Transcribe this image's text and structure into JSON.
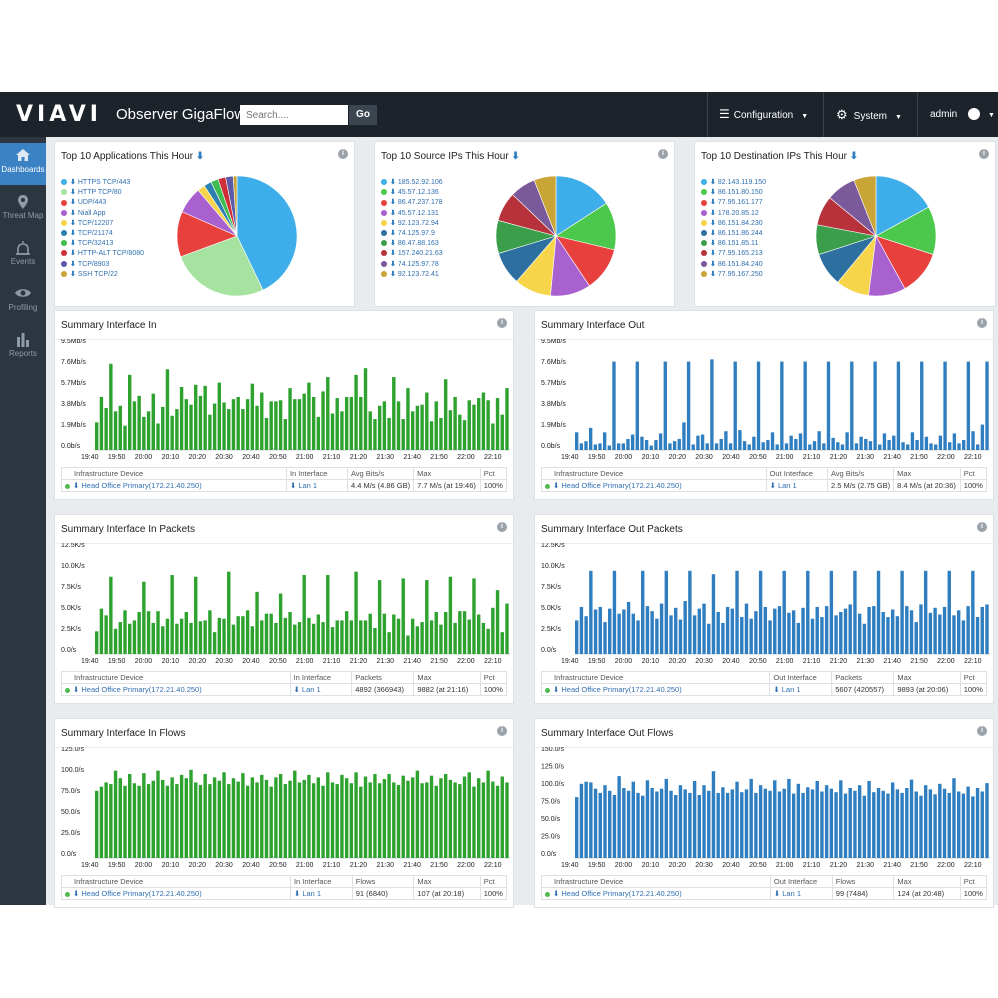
{
  "topbar": {
    "logo": "VIAVI",
    "app_name": "Observer GigaFlow",
    "search_placeholder": "Search....",
    "go_label": "Go",
    "nav": {
      "configuration": "Configuration",
      "system": "System",
      "user": "admin"
    }
  },
  "sidebar": {
    "items": [
      {
        "label": "Dashboards",
        "icon": "home-icon"
      },
      {
        "label": "Threat Map",
        "icon": "map-pin-icon"
      },
      {
        "label": "Events",
        "icon": "alarm-icon"
      },
      {
        "label": "Profiling",
        "icon": "eye-icon"
      },
      {
        "label": "Reports",
        "icon": "bar-chart-icon"
      }
    ]
  },
  "top_panels": [
    {
      "title": "Top 10 Applications This Hour",
      "legend": [
        "HTTPS TCP/443",
        "HTTP TCP/80",
        "UDP/443",
        "Niall App",
        "TCP/12207",
        "TCP/21174",
        "TCP/32413",
        "HTTP-ALT TCP/8080",
        "TCP/8903",
        "SSH TCP/22"
      ],
      "colors": [
        "#3daee9",
        "#a6e3a1",
        "#e8403c",
        "#a961cf",
        "#f7d54a",
        "#2d7fb0",
        "#3fbc4f",
        "#ce2e35",
        "#5a5aa8",
        "#c9a437"
      ],
      "values": [
        42,
        26,
        12,
        7,
        2,
        2,
        2,
        2,
        2,
        1
      ]
    },
    {
      "title": "Top 10 Source IPs This Hour",
      "legend": [
        "185.52.92.106",
        "45.57.12.136",
        "86.47.237.178",
        "45.57.12.131",
        "92.123.72.94",
        "74.125.97.9",
        "86.47.88.163",
        "157.240.21.63",
        "74.125.97.78",
        "92.123.72.41"
      ],
      "colors": [
        "#3daee9",
        "#4cc94c",
        "#e8403c",
        "#a961cf",
        "#f7d54a",
        "#2d6f9e",
        "#3a9e4a",
        "#b8323c",
        "#7a5a9a",
        "#c9a437"
      ],
      "values": [
        16,
        13,
        12,
        11,
        10,
        9,
        9,
        8,
        7,
        6
      ]
    },
    {
      "title": "Top 10 Destination IPs This Hour",
      "legend": [
        "82.143.119.150",
        "86.151.80.150",
        "77.95.161.177",
        "178.20.85.12",
        "86.151.84.230",
        "86.151.86.244",
        "86.151.85.11",
        "77.95.165.213",
        "86.151.84.240",
        "77.95.167.250"
      ],
      "colors": [
        "#3daee9",
        "#4cc94c",
        "#e8403c",
        "#a961cf",
        "#f7d54a",
        "#2d6f9e",
        "#3a9e4a",
        "#b8323c",
        "#7a5a9a",
        "#c9a437"
      ],
      "values": [
        17,
        13,
        12,
        10,
        9,
        9,
        8,
        8,
        8,
        6
      ]
    }
  ],
  "charts": [
    {
      "title": "Summary Interface In",
      "color": "#2ea22e",
      "cols": [
        "Infrastructure Device",
        "In Interface",
        "Avg Bits/s",
        "Max",
        "Pct"
      ],
      "row": [
        "Head Office Primary(172.21.40.250)",
        "Lan 1",
        "4.4 M/s (4.86 GB)",
        "7.7 M/s (at 19:46)",
        "100%"
      ],
      "chart_data": {
        "type": "bar",
        "ylabel": "",
        "y_ticks": [
          "0.0b/s",
          "1.9Mb/s",
          "3.8Mb/s",
          "5.7Mb/s",
          "7.6Mb/s",
          "9.5Mb/s"
        ],
        "ylim": [
          0,
          9.5
        ],
        "x_ticks": [
          "19:40",
          "19:50",
          "20:00",
          "20:10",
          "20:20",
          "20:30",
          "20:40",
          "20:50",
          "21:00",
          "21:10",
          "21:20",
          "21:30",
          "21:40",
          "21:50",
          "22:00",
          "22:10"
        ],
        "values": [
          2.5,
          4.8,
          3.8,
          7.8,
          3.5,
          4.0,
          2.2,
          6.8,
          4.4,
          4.9,
          3.0,
          3.5,
          5.1,
          2.4,
          3.9,
          7.3,
          3.1,
          3.7,
          5.7,
          4.6,
          4.1,
          5.9,
          4.9,
          5.8,
          3.2,
          4.2,
          6.1,
          4.3,
          3.7,
          4.6,
          4.8,
          3.7,
          4.6,
          6.0,
          4.0,
          5.2,
          2.9,
          4.4,
          4.4,
          4.5,
          2.8,
          5.6,
          4.6,
          4.6,
          5.1,
          6.1,
          4.8,
          3.0,
          5.3,
          6.6,
          3.3,
          4.7,
          3.5,
          4.8,
          4.8,
          6.8,
          4.8,
          7.4,
          3.5,
          2.8,
          4.0,
          4.4,
          2.9,
          6.6,
          4.4,
          2.8,
          5.6,
          3.5,
          4.0,
          4.1,
          5.2,
          2.6,
          4.4,
          2.9,
          6.4,
          3.6,
          4.8,
          3.2,
          2.7,
          4.5,
          4.1,
          4.7,
          5.2,
          4.5,
          2.4,
          4.7,
          3.2,
          5.6
        ]
      }
    },
    {
      "title": "Summary Interface Out",
      "color": "#2f7ec0",
      "cols": [
        "Infrastructure Device",
        "Out Interface",
        "Avg Bits/s",
        "Max",
        "Pct"
      ],
      "row": [
        "Head Office Primary(172.21.40.250)",
        "Lan 1",
        "2.5 M/s (2.75 GB)",
        "8.4 M/s (at 20:36)",
        "100%"
      ],
      "chart_data": {
        "type": "bar",
        "ylabel": "",
        "y_ticks": [
          "0.0b/s",
          "1.9Mb/s",
          "3.8Mb/s",
          "5.7Mb/s",
          "7.6Mb/s",
          "9.5Mb/s"
        ],
        "ylim": [
          0,
          9.5
        ],
        "x_ticks": [
          "19:40",
          "19:50",
          "20:00",
          "20:10",
          "20:20",
          "20:30",
          "20:40",
          "20:50",
          "21:00",
          "21:10",
          "21:20",
          "21:30",
          "21:40",
          "21:50",
          "22:00",
          "22:10"
        ],
        "values": [
          1.6,
          0.6,
          0.8,
          2.0,
          0.5,
          0.6,
          1.6,
          0.4,
          8.0,
          0.6,
          0.6,
          1.0,
          1.4,
          8.0,
          1.2,
          0.9,
          0.4,
          0.9,
          1.5,
          8.0,
          0.6,
          0.8,
          1.0,
          2.5,
          8.0,
          0.5,
          1.3,
          1.4,
          0.6,
          8.2,
          0.6,
          1.0,
          1.7,
          0.6,
          8.0,
          1.8,
          0.8,
          0.5,
          1.2,
          8.0,
          0.7,
          0.9,
          1.6,
          0.5,
          8.0,
          0.6,
          1.3,
          1.0,
          1.5,
          8.0,
          0.5,
          0.8,
          1.7,
          0.6,
          8.0,
          1.1,
          0.7,
          0.5,
          1.6,
          8.0,
          0.6,
          1.2,
          1.0,
          0.8,
          8.0,
          0.5,
          1.5,
          0.9,
          1.3,
          8.0,
          0.7,
          0.5,
          1.6,
          0.9,
          8.0,
          1.2,
          0.6,
          0.5,
          1.3,
          8.0,
          0.7,
          1.5,
          0.6,
          0.9,
          8.0,
          1.7,
          0.5,
          2.3,
          8.0
        ]
      }
    },
    {
      "title": "Summary Interface In Packets",
      "color": "#2ea22e",
      "cols": [
        "Infrastructure Device",
        "In Interface",
        "Packets",
        "Max",
        "Pct"
      ],
      "row": [
        "Head Office Primary(172.21.40.250)",
        "Lan 1",
        "4892 (366943)",
        "9882 (at 21:16)",
        "100%"
      ],
      "chart_data": {
        "type": "bar",
        "ylabel": "",
        "y_ticks": [
          "0.0/s",
          "2.5K/s",
          "5.0K/s",
          "7.5K/s",
          "10.0K/s",
          "12.5K/s"
        ],
        "ylim": [
          0,
          12.5
        ],
        "x_ticks": [
          "19:40",
          "19:50",
          "20:00",
          "20:10",
          "20:20",
          "20:30",
          "20:40",
          "20:50",
          "21:00",
          "21:10",
          "21:20",
          "21:30",
          "21:40",
          "21:50",
          "22:00",
          "22:10"
        ],
        "values": [
          2.7,
          5.4,
          4.6,
          9.2,
          3.0,
          3.8,
          5.2,
          3.6,
          4.0,
          5.0,
          8.6,
          5.1,
          3.7,
          5.1,
          3.3,
          4.2,
          9.4,
          3.6,
          4.2,
          5.0,
          3.7,
          9.2,
          3.9,
          4.0,
          5.2,
          2.6,
          4.3,
          4.2,
          9.8,
          3.5,
          4.5,
          4.5,
          5.2,
          3.3,
          7.4,
          4.0,
          4.8,
          4.8,
          3.7,
          7.2,
          4.3,
          5.0,
          3.5,
          3.8,
          9.4,
          4.3,
          3.6,
          4.7,
          3.8,
          9.4,
          3.2,
          4.0,
          4.0,
          5.1,
          4.0,
          9.8,
          4.0,
          4.0,
          4.8,
          3.1,
          8.8,
          4.8,
          2.6,
          4.7,
          4.2,
          9.0,
          2.2,
          4.2,
          3.3,
          3.8,
          8.8,
          4.0,
          5.0,
          3.5,
          5.0,
          9.2,
          3.7,
          5.1,
          5.1,
          4.1,
          9.0,
          4.7,
          3.7,
          3.0,
          5.5,
          7.6,
          2.6,
          6.0
        ]
      }
    },
    {
      "title": "Summary Interface Out Packets",
      "color": "#2f7ec0",
      "cols": [
        "Infrastructure Device",
        "Out Interface",
        "Packets",
        "Max",
        "Pct"
      ],
      "row": [
        "Head Office Primary(172.21.40.250)",
        "Lan 1",
        "5607 (420557)",
        "9893 (at 20:06)",
        "100%"
      ],
      "chart_data": {
        "type": "bar",
        "ylabel": "",
        "y_ticks": [
          "0.0/s",
          "2.5K/s",
          "5.0K/s",
          "7.5K/s",
          "10.0K/s",
          "12.5K/s"
        ],
        "ylim": [
          0,
          12.5
        ],
        "x_ticks": [
          "19:40",
          "19:50",
          "20:00",
          "20:10",
          "20:20",
          "20:30",
          "20:40",
          "20:50",
          "21:00",
          "21:10",
          "21:20",
          "21:30",
          "21:40",
          "21:50",
          "22:00",
          "22:10"
        ],
        "values": [
          4.0,
          5.6,
          4.5,
          9.9,
          5.3,
          5.6,
          3.8,
          5.4,
          9.9,
          4.8,
          5.3,
          6.2,
          4.8,
          4.0,
          9.9,
          5.7,
          5.1,
          4.2,
          6.0,
          9.9,
          4.6,
          5.5,
          4.1,
          6.3,
          9.9,
          4.6,
          5.4,
          6.0,
          3.6,
          9.5,
          5.0,
          3.7,
          5.6,
          5.4,
          9.9,
          4.4,
          6.0,
          4.2,
          5.1,
          9.9,
          5.6,
          4.0,
          5.4,
          5.7,
          9.9,
          4.9,
          5.2,
          3.7,
          5.5,
          9.9,
          4.2,
          5.6,
          4.4,
          5.7,
          9.9,
          4.6,
          5.0,
          5.4,
          5.9,
          9.9,
          4.8,
          3.6,
          5.6,
          5.7,
          9.9,
          5.0,
          4.4,
          5.3,
          4.5,
          9.9,
          5.7,
          5.2,
          3.8,
          5.9,
          9.9,
          4.9,
          5.5,
          4.7,
          5.6,
          9.9,
          4.6,
          5.2,
          4.0,
          5.7,
          9.9,
          4.4,
          5.6,
          5.9
        ]
      }
    },
    {
      "title": "Summary Interface In Flows",
      "color": "#2ea22e",
      "cols": [
        "Infrastructure Device",
        "In Interface",
        "Flows",
        "Max",
        "Pct"
      ],
      "row": [
        "Head Office Primary(172.21.40.250)",
        "Lan 1",
        "91 (6840)",
        "107 (at 20:18)",
        "100%"
      ],
      "chart_data": {
        "type": "bar",
        "ylabel": "",
        "y_ticks": [
          "0.0/s",
          "25.0/s",
          "50.0/s",
          "75.0/s",
          "100.0/s",
          "125.0/s"
        ],
        "ylim": [
          0,
          125
        ],
        "x_ticks": [
          "19:40",
          "19:50",
          "20:00",
          "20:10",
          "20:20",
          "20:30",
          "20:40",
          "20:50",
          "21:00",
          "21:10",
          "21:20",
          "21:30",
          "21:40",
          "21:50",
          "22:00",
          "22:10"
        ],
        "values": [
          80,
          85,
          90,
          88,
          104,
          95,
          86,
          100,
          89,
          86,
          101,
          88,
          92,
          104,
          93,
          86,
          96,
          88,
          99,
          95,
          105,
          90,
          87,
          100,
          88,
          96,
          92,
          102,
          88,
          95,
          91,
          101,
          86,
          96,
          90,
          99,
          93,
          85,
          96,
          100,
          88,
          92,
          104,
          90,
          93,
          99,
          89,
          96,
          86,
          102,
          90,
          88,
          99,
          95,
          89,
          102,
          85,
          97,
          90,
          100,
          89,
          94,
          100,
          90,
          87,
          98,
          92,
          96,
          104,
          89,
          90,
          98,
          86,
          95,
          100,
          93,
          90,
          88,
          97,
          102,
          85,
          95,
          90,
          104,
          91,
          86,
          97,
          90
        ]
      }
    },
    {
      "title": "Summary Interface Out Flows",
      "color": "#2f7ec0",
      "cols": [
        "Infrastructure Device",
        "Out Interface",
        "Flows",
        "Max",
        "Pct"
      ],
      "row": [
        "Head Office Primary(172.21.40.250)",
        "Lan 1",
        "99 (7484)",
        "124 (at 20:48)",
        "100%"
      ],
      "chart_data": {
        "type": "bar",
        "ylabel": "",
        "y_ticks": [
          "0.0/s",
          "25.0/s",
          "50.0/s",
          "75.0/s",
          "100.0/s",
          "125.0/s",
          "150.0/s"
        ],
        "ylim": [
          0,
          150
        ],
        "x_ticks": [
          "19:40",
          "19:50",
          "20:00",
          "20:10",
          "20:20",
          "20:30",
          "20:40",
          "20:50",
          "21:00",
          "21:10",
          "21:20",
          "21:30",
          "21:40",
          "21:50",
          "22:00",
          "22:10"
        ],
        "values": [
          87,
          106,
          109,
          108,
          99,
          93,
          104,
          96,
          90,
          117,
          100,
          96,
          109,
          93,
          89,
          111,
          100,
          95,
          99,
          113,
          96,
          90,
          104,
          98,
          93,
          110,
          90,
          104,
          96,
          124,
          93,
          101,
          93,
          98,
          109,
          94,
          98,
          113,
          93,
          104,
          99,
          96,
          111,
          95,
          99,
          113,
          92,
          106,
          93,
          101,
          98,
          110,
          95,
          104,
          99,
          94,
          111,
          92,
          100,
          96,
          104,
          89,
          110,
          94,
          100,
          96,
          92,
          108,
          98,
          93,
          100,
          112,
          95,
          89,
          104,
          98,
          91,
          106,
          99,
          93,
          114,
          95,
          92,
          102,
          88,
          100,
          95,
          107
        ]
      }
    }
  ]
}
